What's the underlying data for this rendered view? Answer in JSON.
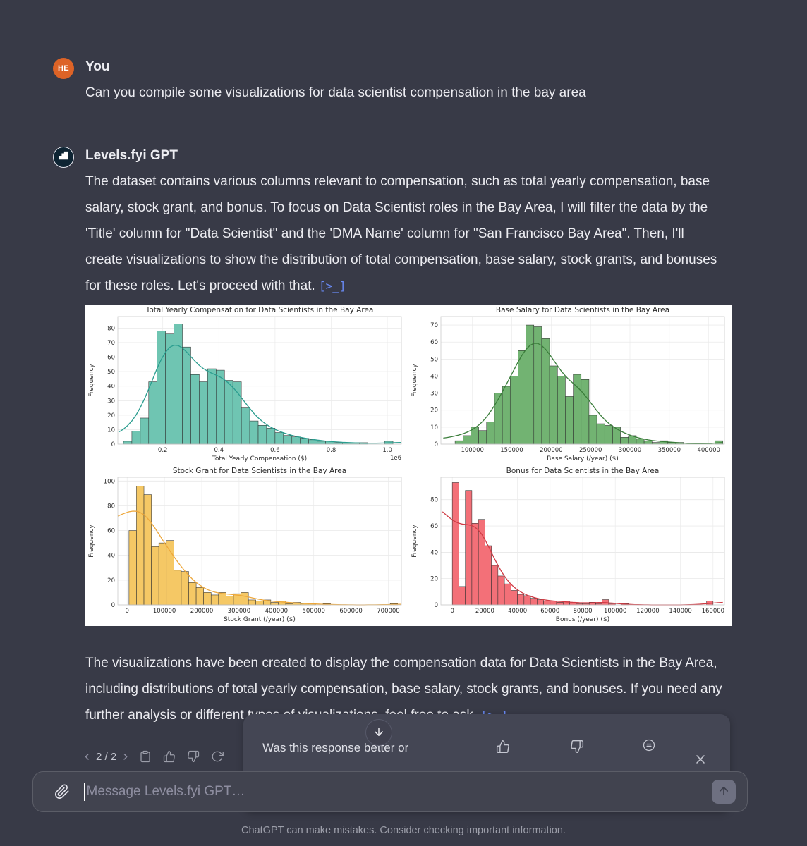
{
  "colors": {
    "background": "#383a47",
    "panel": "#ffffff",
    "accent_blue": "#6a8bf7",
    "user_avatar": "#dd6327"
  },
  "user_message": {
    "avatar_initials": "HE",
    "author": "You",
    "text": "Can you compile some visualizations for data scientist compensation in the bay area"
  },
  "assistant_message": {
    "author": "Levels.fyi GPT",
    "intro_text": "The dataset contains various columns relevant to compensation, such as total yearly compensation, base salary, stock grant, and bonus. To focus on Data Scientist roles in the Bay Area, I will filter the data by the 'Title' column for \"Data Scientist\" and the 'DMA Name' column for \"San Francisco Bay Area\". Then, I'll create visualizations to show the distribution of total compensation, base salary, stock grants, and bonuses for these roles. Let's proceed with that.",
    "code_ref_label": "[>_]",
    "outro_text": "The visualizations have been created to display the compensation data for Data Scientists in the Bay Area, including distributions of total yearly compensation, base salary, stock grants, and bonuses. If you need any further analysis or different types of visualizations, feel free to ask."
  },
  "chart_data": [
    {
      "type": "histogram",
      "title": "Total Yearly Compensation for Data Scientists in the Bay Area",
      "xlabel": "Total Yearly Compensation ($)",
      "ylabel": "Frequency",
      "x_offset_label": "1e6",
      "bar_color": "#6fc5b2",
      "line_color": "#2a9d8f",
      "x_min": 40000,
      "x_max": 1050000,
      "bin_start": 60000,
      "bin_width": 30000,
      "values": [
        2,
        9,
        18,
        43,
        78,
        76,
        83,
        67,
        48,
        43,
        52,
        51,
        44,
        43,
        25,
        16,
        13,
        11,
        8,
        6,
        5,
        4,
        3,
        2,
        2,
        1,
        1,
        1,
        1,
        0,
        0,
        2
      ],
      "x_ticks": [
        200000,
        400000,
        600000,
        800000,
        1000000
      ],
      "x_tick_labels": [
        "0.2",
        "0.4",
        "0.6",
        "0.8",
        "1.0"
      ],
      "ylim": 88,
      "y_ticks": [
        0,
        10,
        20,
        30,
        40,
        50,
        60,
        70,
        80
      ],
      "grid": true,
      "kde": true
    },
    {
      "type": "histogram",
      "title": "Base Salary for Data Scientists in the Bay Area",
      "xlabel": "Base Salary (/year) ($)",
      "ylabel": "Frequency",
      "x_offset_label": "",
      "bar_color": "#72b372",
      "line_color": "#3a7d3a",
      "x_min": 60000,
      "x_max": 420000,
      "bin_start": 78000,
      "bin_width": 10000,
      "values": [
        2,
        5,
        10,
        8,
        13,
        30,
        34,
        40,
        55,
        70,
        69,
        62,
        46,
        40,
        28,
        41,
        38,
        17,
        12,
        11,
        10,
        4,
        5,
        3,
        2,
        1,
        2,
        1,
        1,
        0,
        0,
        0,
        0,
        2
      ],
      "x_ticks": [
        100000,
        150000,
        200000,
        250000,
        300000,
        350000,
        400000
      ],
      "x_tick_labels": [
        "100000",
        "150000",
        "200000",
        "250000",
        "300000",
        "350000",
        "400000"
      ],
      "ylim": 75,
      "y_ticks": [
        0,
        10,
        20,
        30,
        40,
        50,
        60,
        70
      ],
      "grid": true,
      "kde": true
    },
    {
      "type": "histogram",
      "title": "Stock Grant for Data Scientists in the Bay Area",
      "xlabel": "Stock Grant (/year) ($)",
      "ylabel": "Frequency",
      "x_offset_label": "",
      "bar_color": "#f5c865",
      "line_color": "#eda73b",
      "x_min": -25000,
      "x_max": 735000,
      "bin_start": 5000,
      "bin_width": 20000,
      "values": [
        60,
        96,
        89,
        47,
        50,
        52,
        28,
        27,
        18,
        14,
        10,
        8,
        10,
        7,
        9,
        10,
        4,
        3,
        4,
        2,
        3,
        1,
        2,
        1,
        1,
        0,
        1,
        0,
        0,
        0,
        0,
        0,
        0,
        0,
        0,
        1
      ],
      "x_ticks": [
        0,
        100000,
        200000,
        300000,
        400000,
        500000,
        600000,
        700000
      ],
      "x_tick_labels": [
        "0",
        "100000",
        "200000",
        "300000",
        "400000",
        "500000",
        "600000",
        "700000"
      ],
      "ylim": 103,
      "y_ticks": [
        0,
        20,
        40,
        60,
        80,
        100
      ],
      "grid": true,
      "kde": true
    },
    {
      "type": "histogram",
      "title": "Bonus for Data Scientists in the Bay Area",
      "xlabel": "Bonus (/year) ($)",
      "ylabel": "Frequency",
      "x_offset_label": "",
      "bar_color": "#f37078",
      "line_color": "#cf3b44",
      "x_min": -7000,
      "x_max": 167000,
      "bin_start": 0,
      "bin_width": 4000,
      "values": [
        93,
        14,
        87,
        62,
        65,
        45,
        30,
        22,
        16,
        11,
        8,
        7,
        5,
        4,
        3,
        3,
        2,
        3,
        2,
        1,
        1,
        2,
        1,
        4,
        1,
        0,
        1,
        0,
        0,
        0,
        0,
        0,
        0,
        0,
        0,
        0,
        0,
        0,
        0,
        3
      ],
      "x_ticks": [
        0,
        20000,
        40000,
        60000,
        80000,
        100000,
        120000,
        140000,
        160000
      ],
      "x_tick_labels": [
        "0",
        "20000",
        "40000",
        "60000",
        "80000",
        "100000",
        "120000",
        "140000",
        "160000"
      ],
      "ylim": 97,
      "y_ticks": [
        0,
        20,
        40,
        60,
        80
      ],
      "grid": true,
      "kde": true
    }
  ],
  "actions": {
    "prev": "‹",
    "pagination": "2 / 2",
    "next": "›"
  },
  "feedback_popup": {
    "question": "Was this response better or"
  },
  "composer": {
    "placeholder": "Message Levels.fyi GPT…"
  },
  "footer": {
    "disclaimer": "ChatGPT can make mistakes. Consider checking important information."
  }
}
